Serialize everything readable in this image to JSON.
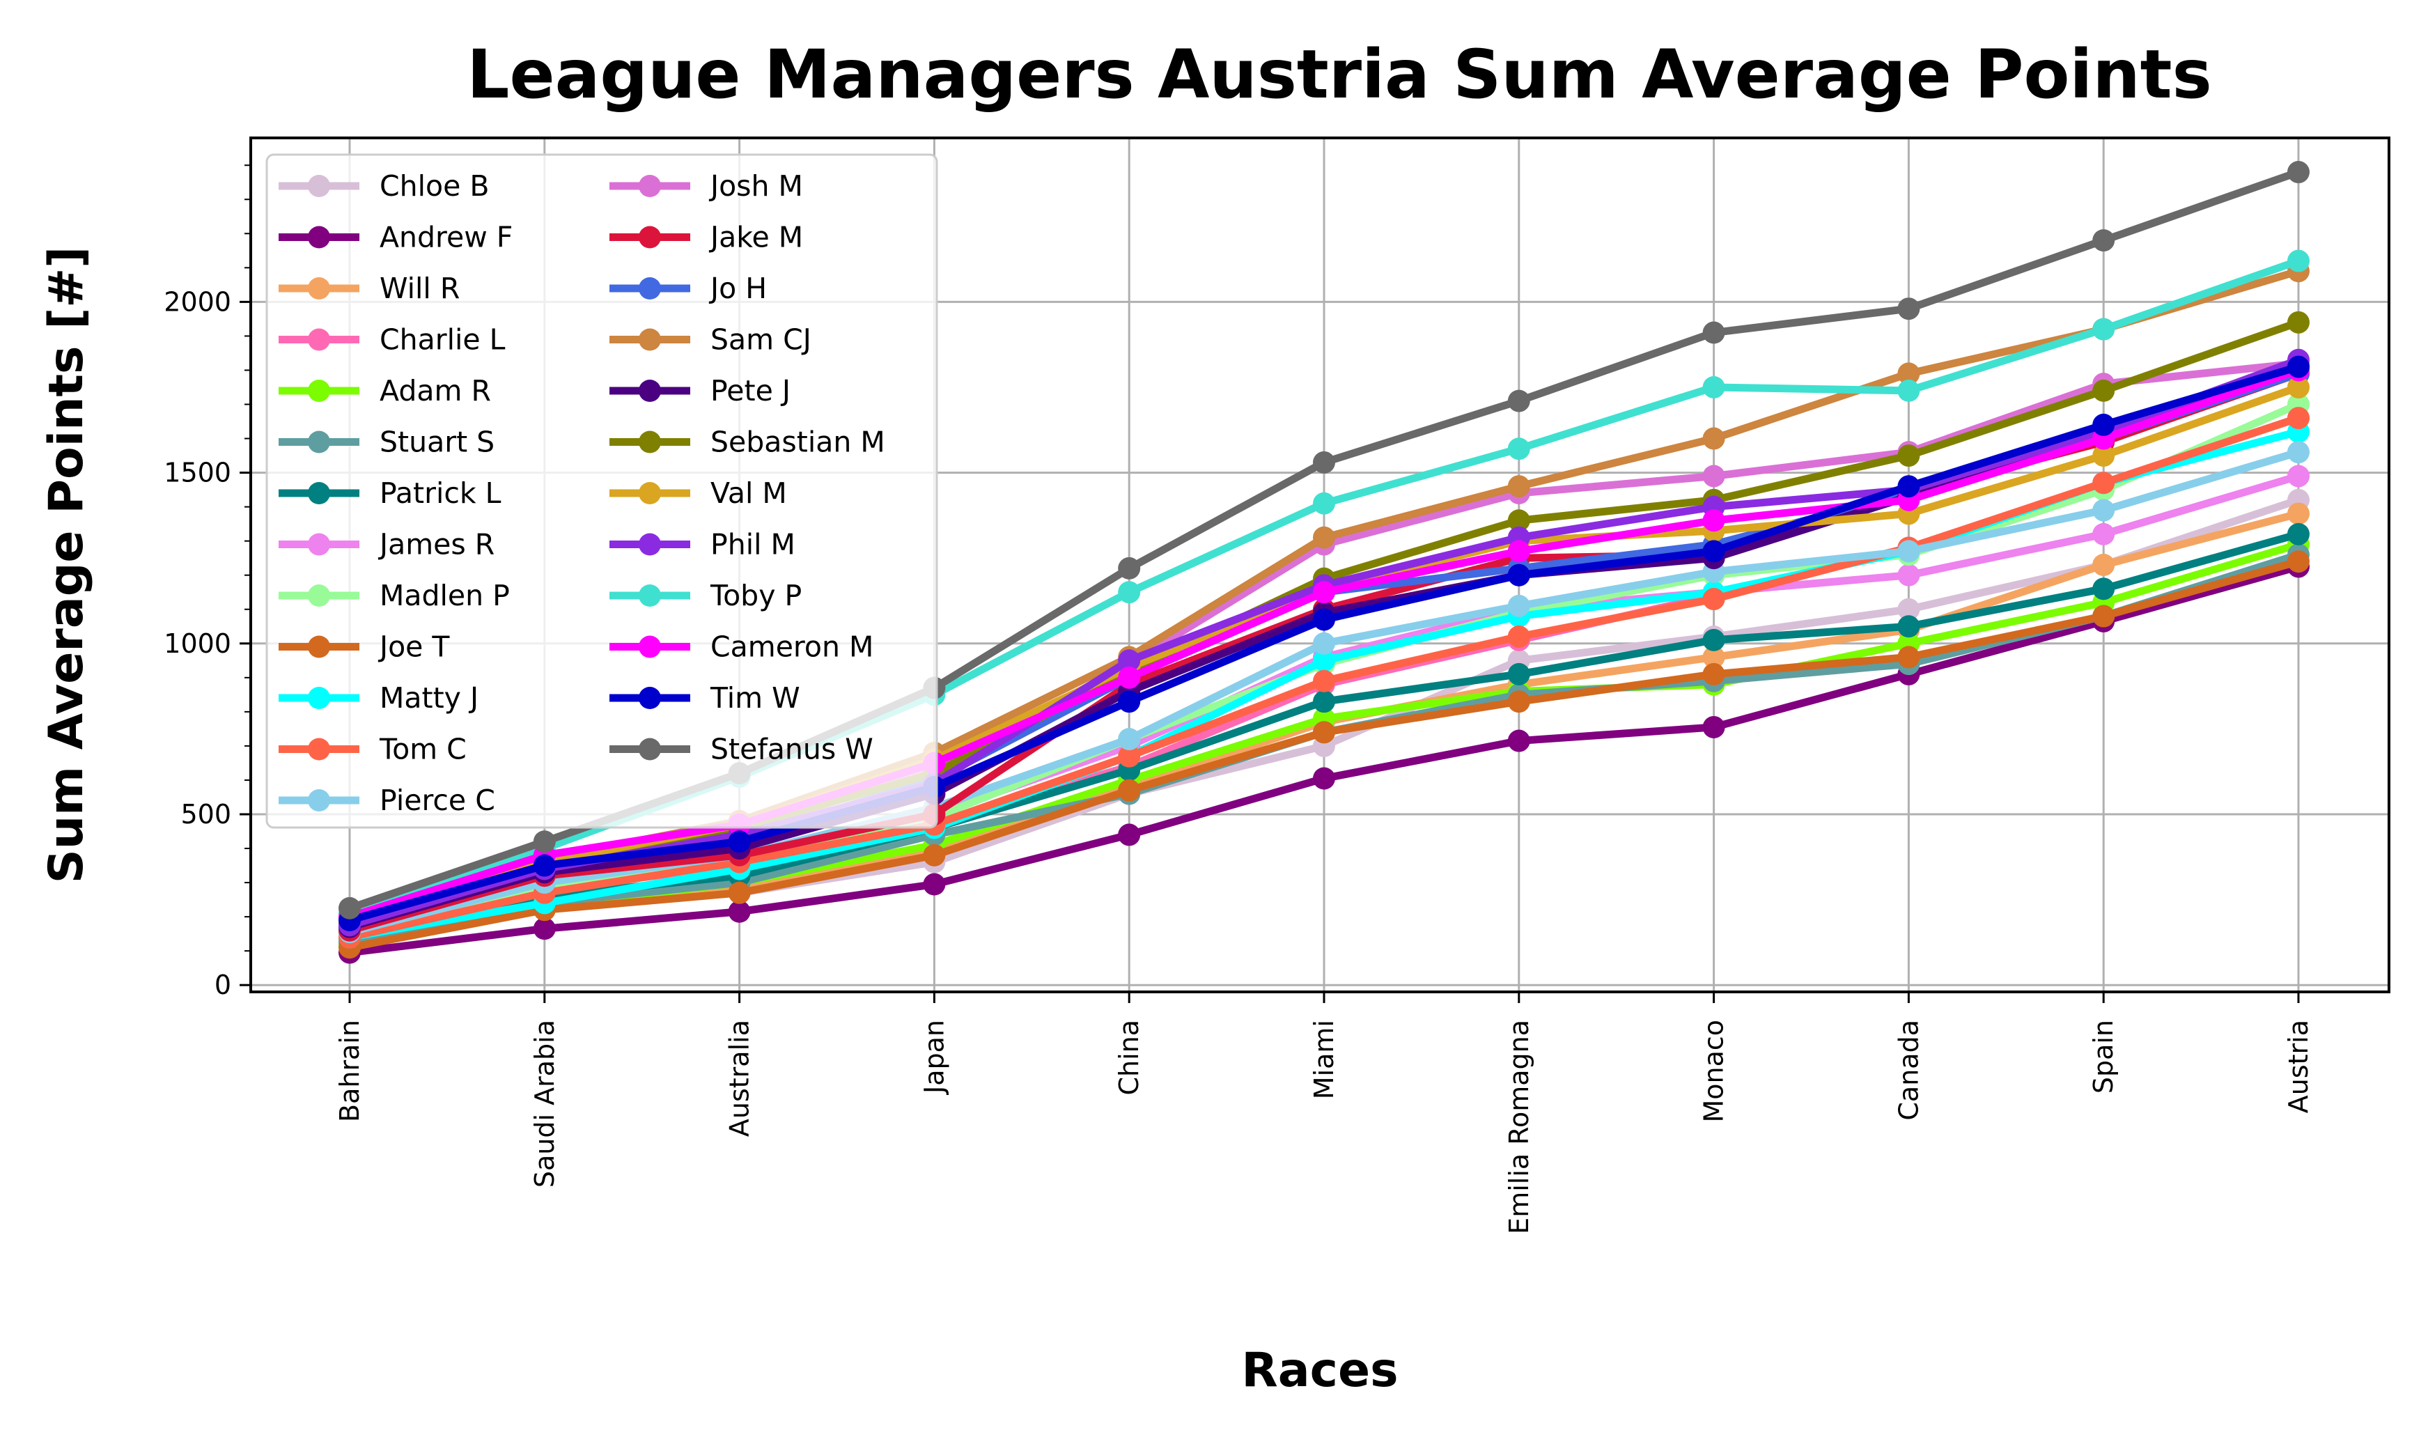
{
  "chart_data": {
    "type": "line",
    "title": "League Managers Austria Sum Average Points",
    "xlabel": "Races",
    "ylabel": "Sum Average Points [#]",
    "categories": [
      "Bahrain",
      "Saudi Arabia",
      "Australia",
      "Japan",
      "China",
      "Miami",
      "Emilia Romagna",
      "Monaco",
      "Canada",
      "Spain",
      "Austria"
    ],
    "ylim": [
      -20,
      2480
    ],
    "yticks": [
      0,
      500,
      1000,
      1500,
      2000
    ],
    "grid": true,
    "legend_position": "upper-left",
    "legend_columns": 2,
    "series": [
      {
        "name": "Chloe B",
        "color": "#D8BFD8",
        "values": [
          130,
          250,
          270,
          360,
          560,
          700,
          950,
          1020,
          1100,
          1230,
          1420
        ]
      },
      {
        "name": "Andrew F",
        "color": "#800080",
        "values": [
          95,
          165,
          215,
          295,
          440,
          605,
          715,
          755,
          910,
          1065,
          1225
        ]
      },
      {
        "name": "Will R",
        "color": "#F4A460",
        "values": [
          120,
          240,
          290,
          400,
          580,
          770,
          880,
          960,
          1040,
          1230,
          1380
        ]
      },
      {
        "name": "Charlie L",
        "color": "#FF69B4",
        "values": [
          135,
          280,
          350,
          470,
          640,
          880,
          1010,
          1140,
          1280,
          1470,
          1660
        ]
      },
      {
        "name": "Adam R",
        "color": "#7CFC00",
        "values": [
          115,
          230,
          300,
          410,
          600,
          780,
          860,
          880,
          1000,
          1120,
          1290
        ]
      },
      {
        "name": "Stuart S",
        "color": "#5F9EA0",
        "values": [
          125,
          240,
          300,
          440,
          560,
          740,
          850,
          890,
          940,
          1080,
          1260
        ]
      },
      {
        "name": "Patrick L",
        "color": "#008080",
        "values": [
          140,
          260,
          320,
          460,
          630,
          830,
          910,
          1010,
          1050,
          1160,
          1320
        ]
      },
      {
        "name": "James R",
        "color": "#EE82EE",
        "values": [
          150,
          290,
          370,
          500,
          700,
          960,
          1100,
          1150,
          1200,
          1320,
          1490
        ]
      },
      {
        "name": "Madlen P",
        "color": "#98FB98",
        "values": [
          145,
          290,
          360,
          490,
          720,
          940,
          1090,
          1200,
          1260,
          1450,
          1700
        ]
      },
      {
        "name": "Joe T",
        "color": "#D2691E",
        "values": [
          110,
          220,
          270,
          380,
          570,
          740,
          830,
          910,
          960,
          1080,
          1240
        ]
      },
      {
        "name": "Matty J",
        "color": "#00FFFF",
        "values": [
          140,
          240,
          340,
          460,
          670,
          950,
          1080,
          1150,
          1270,
          1470,
          1620
        ]
      },
      {
        "name": "Tom C",
        "color": "#FF6347",
        "values": [
          140,
          270,
          360,
          470,
          670,
          890,
          1020,
          1130,
          1280,
          1470,
          1660
        ]
      },
      {
        "name": "Pierce C",
        "color": "#87CEEB",
        "values": [
          155,
          300,
          380,
          520,
          720,
          1000,
          1110,
          1210,
          1270,
          1390,
          1560
        ]
      },
      {
        "name": "Josh M",
        "color": "#DA70D6",
        "values": [
          175,
          360,
          450,
          630,
          940,
          1290,
          1440,
          1490,
          1560,
          1760,
          1820
        ]
      },
      {
        "name": "Jake M",
        "color": "#DC143C",
        "values": [
          160,
          320,
          380,
          500,
          880,
          1100,
          1250,
          1260,
          1440,
          1590,
          1790
        ]
      },
      {
        "name": "Jo H",
        "color": "#4169E1",
        "values": [
          170,
          350,
          430,
          600,
          900,
          1150,
          1220,
          1290,
          1440,
          1600,
          1790
        ]
      },
      {
        "name": "Sam CJ",
        "color": "#CD853F",
        "values": [
          180,
          370,
          480,
          680,
          960,
          1310,
          1460,
          1600,
          1790,
          1920,
          2090
        ]
      },
      {
        "name": "Pete J",
        "color": "#4B0082",
        "values": [
          170,
          330,
          400,
          560,
          860,
          1090,
          1200,
          1250,
          1430,
          1620,
          1810
        ]
      },
      {
        "name": "Sebastian M",
        "color": "#808000",
        "values": [
          180,
          350,
          460,
          620,
          920,
          1190,
          1360,
          1420,
          1550,
          1740,
          1940
        ]
      },
      {
        "name": "Val M",
        "color": "#DAA520",
        "values": [
          190,
          360,
          470,
          660,
          930,
          1160,
          1300,
          1330,
          1380,
          1550,
          1750
        ]
      },
      {
        "name": "Phil M",
        "color": "#8A2BE2",
        "values": [
          175,
          340,
          440,
          590,
          950,
          1170,
          1310,
          1400,
          1450,
          1620,
          1830
        ]
      },
      {
        "name": "Toby P",
        "color": "#40E0D0",
        "values": [
          210,
          400,
          610,
          850,
          1150,
          1410,
          1570,
          1750,
          1740,
          1920,
          2120
        ]
      },
      {
        "name": "Cameron M",
        "color": "#FF00FF",
        "values": [
          200,
          380,
          470,
          650,
          900,
          1150,
          1270,
          1360,
          1420,
          1600,
          1800
        ]
      },
      {
        "name": "Tim W",
        "color": "#0000CD",
        "values": [
          190,
          350,
          420,
          580,
          830,
          1070,
          1200,
          1270,
          1460,
          1640,
          1810
        ]
      },
      {
        "name": "Stefanus W",
        "color": "#696969",
        "values": [
          225,
          420,
          620,
          870,
          1220,
          1530,
          1710,
          1910,
          1980,
          2180,
          2380
        ]
      }
    ]
  }
}
